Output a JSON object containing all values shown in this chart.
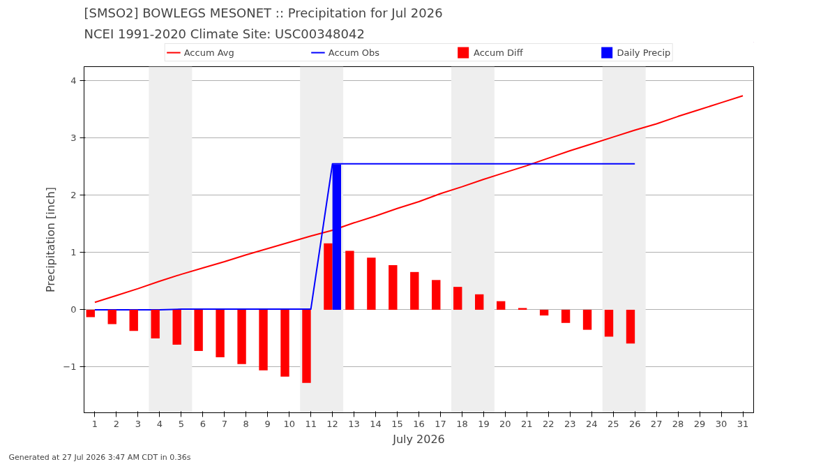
{
  "chart_data": {
    "type": "line",
    "title": "[SMSO2] BOWLEGS MESONET :: Precipitation for Jul 2026",
    "subtitle": "NCEI 1991-2020 Climate Site: USC00348042",
    "xlabel": "July 2026",
    "ylabel": "Precipitation [inch]",
    "x": [
      1,
      2,
      3,
      4,
      5,
      6,
      7,
      8,
      9,
      10,
      11,
      12,
      13,
      14,
      15,
      16,
      17,
      18,
      19,
      20,
      21,
      22,
      23,
      24,
      25,
      26,
      27,
      28,
      29,
      30,
      31
    ],
    "series": [
      {
        "name": "Accum Avg",
        "color": "#ff0000",
        "values": [
          0.13,
          0.25,
          0.37,
          0.5,
          0.62,
          0.73,
          0.84,
          0.96,
          1.07,
          1.18,
          1.29,
          1.39,
          1.52,
          1.64,
          1.77,
          1.89,
          2.03,
          2.15,
          2.28,
          2.4,
          2.52,
          2.65,
          2.78,
          2.9,
          3.02,
          3.14,
          3.25,
          3.38,
          3.5,
          3.62,
          3.74
        ]
      },
      {
        "name": "Accum Obs",
        "color": "#0000ff",
        "values": [
          0,
          0,
          0,
          0,
          0.01,
          0.01,
          0.01,
          0.01,
          0.01,
          0.01,
          0.01,
          2.55,
          2.55,
          2.55,
          2.55,
          2.55,
          2.55,
          2.55,
          2.55,
          2.55,
          2.55,
          2.55,
          2.55,
          2.55,
          2.55,
          2.55,
          null,
          null,
          null,
          null,
          null
        ]
      },
      {
        "name": "Accum Diff",
        "type": "bar",
        "color": "#ff0000",
        "values": [
          -0.13,
          -0.25,
          -0.37,
          -0.5,
          -0.61,
          -0.72,
          -0.83,
          -0.95,
          -1.06,
          -1.17,
          -1.28,
          1.16,
          1.03,
          0.91,
          0.78,
          0.66,
          0.52,
          0.4,
          0.27,
          0.15,
          0.03,
          -0.1,
          -0.23,
          -0.35,
          -0.47,
          -0.59,
          null,
          null,
          null,
          null,
          null
        ]
      },
      {
        "name": "Daily Precip",
        "type": "bar",
        "color": "#0000ff",
        "values": [
          0,
          0,
          0,
          0,
          0.01,
          0,
          0,
          0,
          0,
          0,
          0,
          2.54,
          0,
          0,
          0,
          0,
          0,
          0,
          0,
          0,
          0,
          0,
          0,
          0,
          0,
          0,
          null,
          null,
          null,
          null,
          null
        ]
      }
    ],
    "bands": [
      {
        "axis": "x",
        "from": 3.5,
        "to": 5.5,
        "color": "#eeeeee"
      },
      {
        "axis": "x",
        "from": 10.5,
        "to": 12.5,
        "color": "#eeeeee"
      },
      {
        "axis": "x",
        "from": 17.5,
        "to": 19.5,
        "color": "#eeeeee"
      },
      {
        "axis": "x",
        "from": 24.5,
        "to": 26.5,
        "color": "#eeeeee"
      }
    ],
    "xlim": [
      0.5,
      31.5
    ],
    "xticks": [
      1,
      2,
      3,
      4,
      5,
      6,
      7,
      8,
      9,
      10,
      11,
      12,
      13,
      14,
      15,
      16,
      17,
      18,
      19,
      20,
      21,
      22,
      23,
      24,
      25,
      26,
      27,
      28,
      29,
      30,
      31
    ],
    "ylim": [
      -1.8,
      4.25
    ],
    "yticks": [
      {
        "value": -1,
        "label": "−1"
      },
      0,
      1,
      2,
      3,
      4
    ],
    "grid": "y",
    "legend": "top",
    "annotations": [
      "Generated at 27 Jul 2026 3:47 AM CDT in 0.36s"
    ]
  }
}
